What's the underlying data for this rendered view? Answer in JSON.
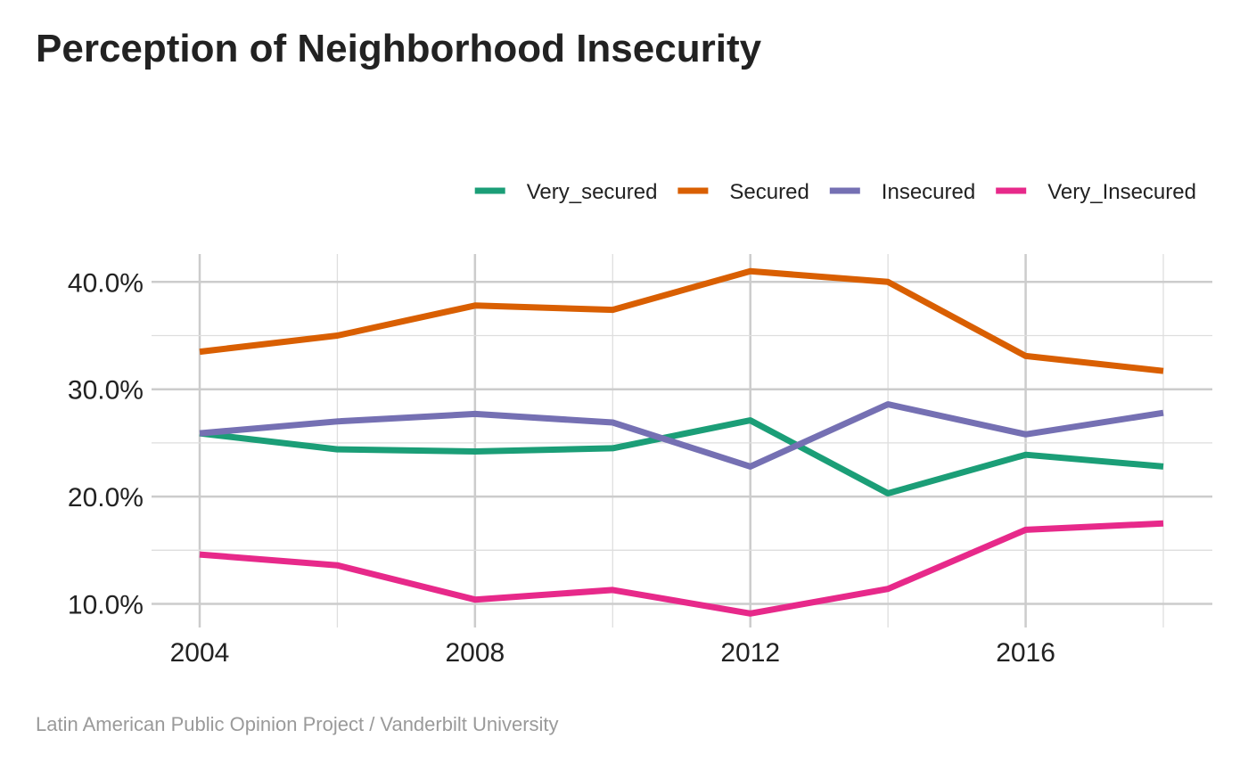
{
  "title": "Perception of Neighborhood Insecurity",
  "caption": "Latin American Public Opinion Project / Vanderbilt University",
  "chart_data": {
    "type": "line",
    "title": "Perception of Neighborhood Insecurity",
    "xlabel": "",
    "ylabel": "",
    "x": [
      2004,
      2006,
      2008,
      2010,
      2012,
      2014,
      2016,
      2018
    ],
    "xlim": [
      2004,
      2018
    ],
    "ylim": [
      7.8,
      42.6
    ],
    "x_ticks": [
      2004,
      2008,
      2012,
      2016
    ],
    "x_tick_labels": [
      "2004",
      "2008",
      "2012",
      "2016"
    ],
    "y_ticks": [
      10,
      20,
      30,
      40
    ],
    "y_tick_labels": [
      "10.0%",
      "20.0%",
      "30.0%",
      "40.0%"
    ],
    "grid": true,
    "legend_position": "top-right",
    "series": [
      {
        "name": "Very_secured",
        "color": "#1b9e77",
        "values": [
          25.9,
          24.4,
          24.2,
          24.5,
          27.1,
          20.3,
          23.9,
          22.8
        ]
      },
      {
        "name": "Secured",
        "color": "#d95f02",
        "values": [
          33.5,
          35.0,
          37.8,
          37.4,
          41.0,
          40.0,
          33.1,
          31.7
        ]
      },
      {
        "name": "Insecured",
        "color": "#7570b3",
        "values": [
          25.9,
          27.0,
          27.7,
          26.9,
          22.8,
          28.6,
          25.8,
          27.8
        ]
      },
      {
        "name": "Very_Insecured",
        "color": "#e7298a",
        "values": [
          14.6,
          13.6,
          10.4,
          11.3,
          9.1,
          11.4,
          16.9,
          17.5
        ]
      }
    ]
  }
}
